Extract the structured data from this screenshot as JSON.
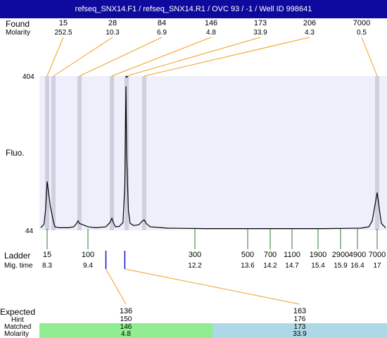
{
  "header": {
    "title": "refseq_SNX14.F1 / refseq_SNX14.R1 / OVC 93 / -1 / Well ID 998641"
  },
  "labels": {
    "found": "Found",
    "molarity": "Molarity",
    "fluo": "Fluo.",
    "ladder": "Ladder",
    "mig_time": "Mig. time",
    "expected": "Expected",
    "hint": "Hint",
    "matched": "Matched",
    "molarity_bottom": "Molarity"
  },
  "chart_data": {
    "type": "line",
    "xlabel": "Mig. time",
    "ylabel": "Fluo.",
    "y_ticks": [
      "404",
      "44"
    ],
    "ylim": [
      44,
      404
    ],
    "xlim": [
      8.1,
      17.2
    ],
    "found_peaks": [
      {
        "size": "15",
        "molarity": "252.5",
        "time": 8.3
      },
      {
        "size": "28",
        "molarity": "10.3",
        "time": 8.4
      },
      {
        "size": "84",
        "molarity": "6.9",
        "time": 9.3
      },
      {
        "size": "146",
        "molarity": "4.8",
        "time": 10.0
      },
      {
        "size": "173",
        "molarity": "33.9",
        "time": 10.4
      },
      {
        "size": "206",
        "molarity": "4.3",
        "time": 10.9
      },
      {
        "size": "7000",
        "molarity": "0.5",
        "time": 17.0
      }
    ],
    "ladder": [
      {
        "size": "15",
        "time": "8.3"
      },
      {
        "size": "100",
        "time": "9.4"
      },
      {
        "size": "300",
        "time": "12.2"
      },
      {
        "size": "500",
        "time": "13.6"
      },
      {
        "size": "700",
        "time": "14.2"
      },
      {
        "size": "1100",
        "time": "14.7"
      },
      {
        "size": "1900",
        "time": "15.4"
      },
      {
        "size": "2900",
        "time": "15.9"
      },
      {
        "size": "4900",
        "time": "16.4"
      },
      {
        "size": "7000",
        "time": "17"
      }
    ],
    "trace": [
      [
        8.1,
        50
      ],
      [
        8.2,
        58
      ],
      [
        8.25,
        90
      ],
      [
        8.3,
        158
      ],
      [
        8.35,
        100
      ],
      [
        8.4,
        64
      ],
      [
        8.45,
        52
      ],
      [
        8.6,
        50
      ],
      [
        8.9,
        50
      ],
      [
        9.1,
        52
      ],
      [
        9.2,
        60
      ],
      [
        9.25,
        66
      ],
      [
        9.3,
        60
      ],
      [
        9.4,
        52
      ],
      [
        9.6,
        50
      ],
      [
        9.85,
        52
      ],
      [
        9.95,
        62
      ],
      [
        10.0,
        72
      ],
      [
        10.05,
        60
      ],
      [
        10.1,
        52
      ],
      [
        10.2,
        53
      ],
      [
        10.3,
        62
      ],
      [
        10.35,
        150
      ],
      [
        10.38,
        380
      ],
      [
        10.4,
        218
      ],
      [
        10.45,
        90
      ],
      [
        10.5,
        60
      ],
      [
        10.6,
        55
      ],
      [
        10.75,
        57
      ],
      [
        10.85,
        66
      ],
      [
        10.9,
        68
      ],
      [
        10.95,
        60
      ],
      [
        11.05,
        52
      ],
      [
        11.5,
        49
      ],
      [
        12.5,
        48
      ],
      [
        14.0,
        48
      ],
      [
        15.5,
        48
      ],
      [
        16.5,
        49
      ],
      [
        16.75,
        52
      ],
      [
        16.85,
        66
      ],
      [
        16.95,
        110
      ],
      [
        17.0,
        132
      ],
      [
        17.05,
        95
      ],
      [
        17.1,
        60
      ],
      [
        17.2,
        50
      ]
    ],
    "expected": [
      {
        "size": "136",
        "hint": "150",
        "matched": "146",
        "molarity": "4.8",
        "color": "#90ee90"
      },
      {
        "size": "163",
        "hint": "176",
        "matched": "173",
        "molarity": "33.9",
        "color": "#add8e6"
      }
    ],
    "colors": {
      "plot_bg": "#efeffb",
      "band": "#cfcfe0",
      "connector": "#f0a020",
      "ladder_tick": "#2e7d2e",
      "expected_marker": "#1010d0",
      "title_bar": "#0f0a9e"
    }
  }
}
